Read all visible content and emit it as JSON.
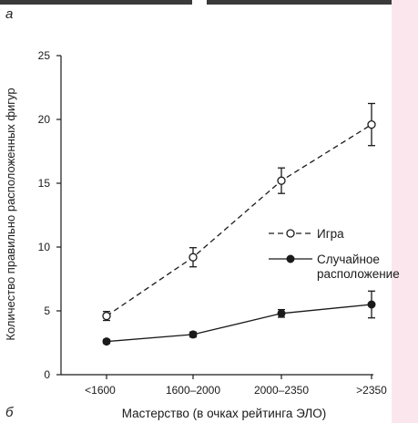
{
  "panel_labels": {
    "top": "а",
    "bottom": "б"
  },
  "chart_data": {
    "type": "line",
    "ylabel": "Количество правильно расположенных фигур",
    "xlabel": "Мастерство (в очках рейтинга ЭЛО)",
    "categories": [
      "<1600",
      "1600–2000",
      "2000–2350",
      ">2350"
    ],
    "ylim": [
      0,
      25
    ],
    "yticks": [
      0,
      5,
      10,
      15,
      20,
      25
    ],
    "legend_position": "center-right",
    "series": [
      {
        "name": "Игра",
        "values": [
          4.6,
          9.2,
          15.2,
          19.6
        ],
        "errors": [
          0.35,
          0.75,
          1.0,
          1.65
        ],
        "style": "dashed",
        "marker": "open-circle"
      },
      {
        "name": "Случайное расположение",
        "values": [
          2.6,
          3.15,
          4.8,
          5.5
        ],
        "errors": [
          0.15,
          0.2,
          0.3,
          1.05
        ],
        "style": "solid",
        "marker": "filled-circle"
      }
    ]
  },
  "colors": {
    "ink": "#1a1a1a",
    "strip": "#fbe6ee",
    "rule": "#3a3a3a"
  }
}
